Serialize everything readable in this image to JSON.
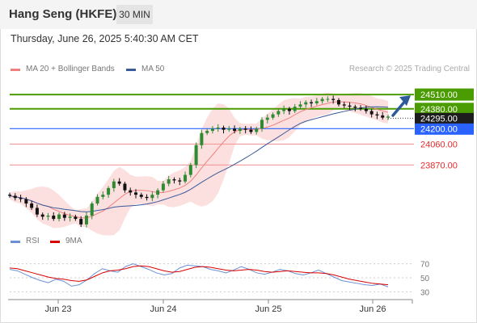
{
  "header": {
    "title": "Hang Seng (HKFE)",
    "timeframe": "30 MIN"
  },
  "timestamp": "Thursday, June 26, 2025 5:40:30 AM CET",
  "legend": {
    "ma20": "MA 20 + Bollinger Bands",
    "ma50": "MA 50",
    "rsi": "RSI",
    "rsi_ma": "9MA"
  },
  "credit": "Research © 2025 Trading Central",
  "colors": {
    "green": "#4a9c00",
    "blue": "#2962ff",
    "red": "#e8292b",
    "ma20": "#f08080",
    "ma50": "#3a5a9a",
    "band": "#fbd5d5",
    "candle_up": "#2e8b32",
    "candle_down": "#111111",
    "rsi": "#6b8fd6",
    "rsi_ma": "#d90000",
    "arrow": "#2d5a9b"
  },
  "chart_data": [
    {
      "type": "candlestick",
      "x_ticks": [
        "Jun 23",
        "Jun 24",
        "Jun 25",
        "Jun 26"
      ],
      "ylim": [
        23300,
        24650
      ],
      "levels": [
        {
          "value": 24510,
          "label": "24510.00",
          "style": "resistance-green"
        },
        {
          "value": 24380,
          "label": "24380.00",
          "style": "resistance-green"
        },
        {
          "value": 24200,
          "label": "24200.00",
          "style": "pivot-blue"
        },
        {
          "value": 24060,
          "label": "24060.00",
          "style": "support-red"
        },
        {
          "value": 23870,
          "label": "23870.00",
          "style": "support-red"
        }
      ],
      "last_price": {
        "value": 24295,
        "label": "24295.00"
      },
      "close_approx": [
        23590,
        23570,
        23560,
        23520,
        23480,
        23420,
        23400,
        23410,
        23380,
        23420,
        23390,
        23400,
        23380,
        23330,
        23410,
        23520,
        23580,
        23600,
        23660,
        23720,
        23700,
        23640,
        23620,
        23600,
        23580,
        23570,
        23600,
        23640,
        23700,
        23740,
        23730,
        23720,
        23780,
        23870,
        24050,
        24160,
        24180,
        24200,
        24210,
        24190,
        24200,
        24180,
        24200,
        24190,
        24170,
        24200,
        24280,
        24300,
        24330,
        24360,
        24380,
        24360,
        24400,
        24420,
        24440,
        24430,
        24450,
        24470,
        24470,
        24460,
        24420,
        24410,
        24400,
        24390,
        24380,
        24360,
        24330,
        24320,
        24300,
        24310
      ],
      "forecast_arrow": {
        "from": 24320,
        "to": 24510
      }
    },
    {
      "type": "line",
      "title": "RSI",
      "ylim": [
        20,
        80
      ],
      "y_ticks": [
        70,
        50,
        30
      ],
      "series": [
        {
          "name": "RSI",
          "values": [
            62,
            60,
            55,
            50,
            46,
            43,
            48,
            45,
            38,
            40,
            47,
            56,
            63,
            60,
            58,
            66,
            70,
            66,
            62,
            57,
            54,
            56,
            64,
            68,
            67,
            66,
            62,
            60,
            57,
            61,
            66,
            62,
            57,
            55,
            58,
            62,
            60,
            56,
            54,
            57,
            61,
            56,
            51,
            46,
            44,
            42,
            40,
            39,
            41,
            37
          ]
        },
        {
          "name": "9MA",
          "values": [
            64,
            63,
            60,
            57,
            54,
            51,
            49,
            48,
            46,
            45,
            47,
            52,
            57,
            60,
            61,
            63,
            66,
            67,
            66,
            63,
            60,
            58,
            59,
            62,
            65,
            66,
            65,
            63,
            61,
            60,
            61,
            62,
            61,
            59,
            58,
            59,
            60,
            59,
            58,
            57,
            57,
            56,
            54,
            51,
            48,
            46,
            44,
            42,
            41,
            40
          ]
        }
      ]
    }
  ]
}
